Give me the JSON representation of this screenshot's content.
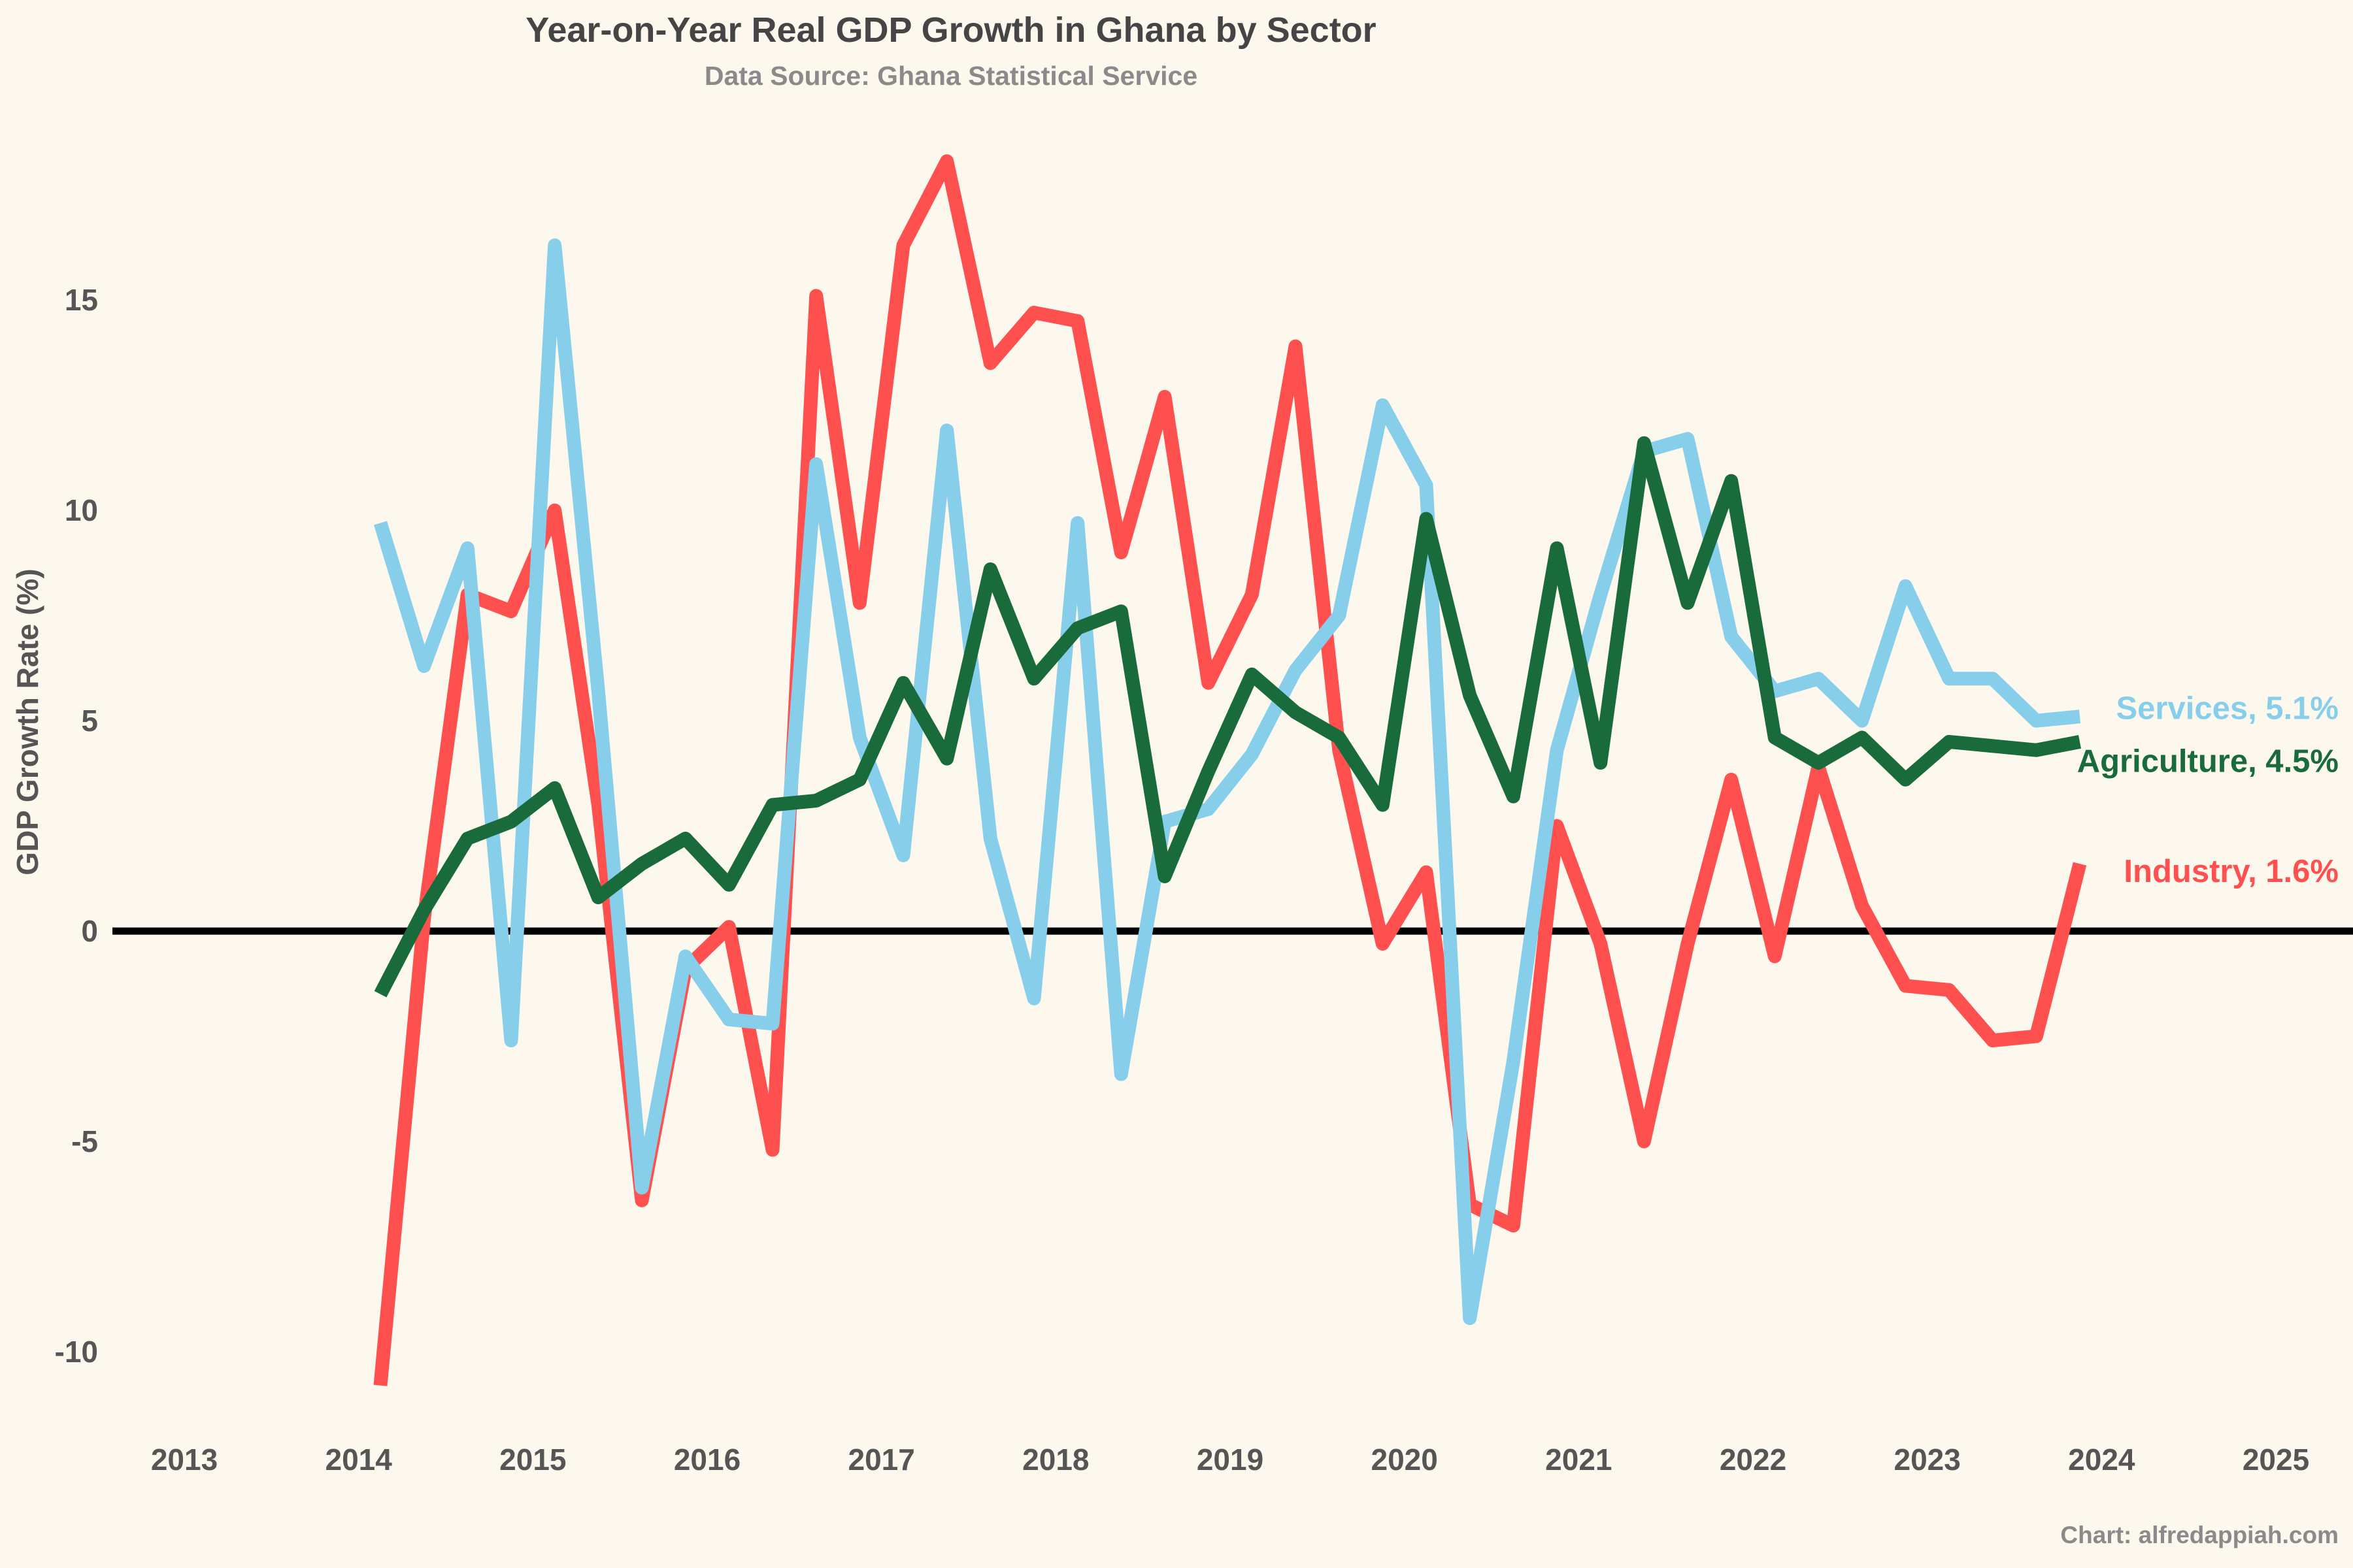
{
  "chart_data": {
    "type": "line",
    "title": "Year-on-Year Real GDP Growth in Ghana by Sector",
    "subtitle": "Data Source: Ghana Statistical Service",
    "ylabel": "GDP Growth Rate (%)",
    "credit": "Chart: alfredappiah.com",
    "xlim": [
      2013,
      2025
    ],
    "ylim": [
      -11.8,
      19.6
    ],
    "x_ticks": [
      2013,
      2014,
      2015,
      2016,
      2017,
      2018,
      2019,
      2020,
      2021,
      2022,
      2023,
      2024,
      2025
    ],
    "x_tick_labels": [
      "2013",
      "2014",
      "2015",
      "2016",
      "2017",
      "2018",
      "2019",
      "2020",
      "2021",
      "2022",
      "2023",
      "2024",
      "2025"
    ],
    "y_ticks": [
      -10,
      -5,
      0,
      5,
      10,
      15
    ],
    "y_tick_labels": [
      "-10",
      "-5",
      "0",
      "5",
      "10",
      "15"
    ],
    "zero_line": true,
    "grid": false,
    "legend": "none; series labelled at line ends",
    "x": [
      2014.125,
      2014.375,
      2014.625,
      2014.875,
      2015.125,
      2015.375,
      2015.625,
      2015.875,
      2016.125,
      2016.375,
      2016.625,
      2016.875,
      2017.125,
      2017.375,
      2017.625,
      2017.875,
      2018.125,
      2018.375,
      2018.625,
      2018.875,
      2019.125,
      2019.375,
      2019.625,
      2019.875,
      2020.125,
      2020.375,
      2020.625,
      2020.875,
      2021.125,
      2021.375,
      2021.625,
      2021.875,
      2022.125,
      2022.375,
      2022.625,
      2022.875,
      2023.125,
      2023.375,
      2023.625,
      2023.875
    ],
    "series": [
      {
        "name": "Industry",
        "label": "Industry, 1.6%",
        "color": "#ff5050",
        "values": [
          -10.8,
          0.3,
          8.0,
          7.6,
          10.0,
          3.0,
          -6.4,
          -0.9,
          0.1,
          -5.2,
          15.1,
          7.8,
          16.3,
          18.3,
          13.5,
          14.7,
          14.5,
          9.0,
          12.7,
          5.9,
          8.0,
          13.9,
          4.3,
          -0.3,
          1.4,
          -6.5,
          -7.0,
          2.5,
          -0.3,
          -5.0,
          -0.3,
          3.6,
          -0.6,
          3.9,
          0.6,
          -1.3,
          -1.4,
          -2.6,
          -2.5,
          1.6
        ]
      },
      {
        "name": "Services",
        "label": "Services, 5.1%",
        "color": "#87ceeb",
        "values": [
          9.7,
          6.3,
          9.1,
          -2.6,
          16.3,
          5.7,
          -6.1,
          -0.6,
          -2.1,
          -2.2,
          11.1,
          4.6,
          1.8,
          11.9,
          2.2,
          -1.6,
          9.7,
          -3.4,
          2.6,
          2.9,
          4.2,
          6.2,
          7.5,
          12.5,
          10.6,
          -9.2,
          -3.1,
          4.3,
          8.0,
          11.4,
          11.7,
          7.0,
          5.7,
          6.0,
          5.0,
          8.2,
          6.0,
          6.0,
          5.0,
          5.1
        ]
      },
      {
        "name": "Agriculture",
        "label": "Agriculture, 4.5%",
        "color": "#1a6b3c",
        "values": [
          -1.5,
          0.5,
          2.2,
          2.6,
          3.4,
          0.8,
          1.6,
          2.2,
          1.1,
          3.0,
          3.1,
          3.6,
          5.9,
          4.1,
          8.6,
          6.0,
          7.2,
          7.6,
          1.3,
          3.8,
          6.1,
          5.2,
          4.6,
          3.0,
          9.8,
          5.6,
          3.2,
          9.1,
          4.0,
          11.6,
          7.8,
          10.7,
          4.6,
          4.0,
          4.6,
          3.6,
          4.5,
          4.4,
          4.3,
          4.5
        ]
      }
    ]
  }
}
